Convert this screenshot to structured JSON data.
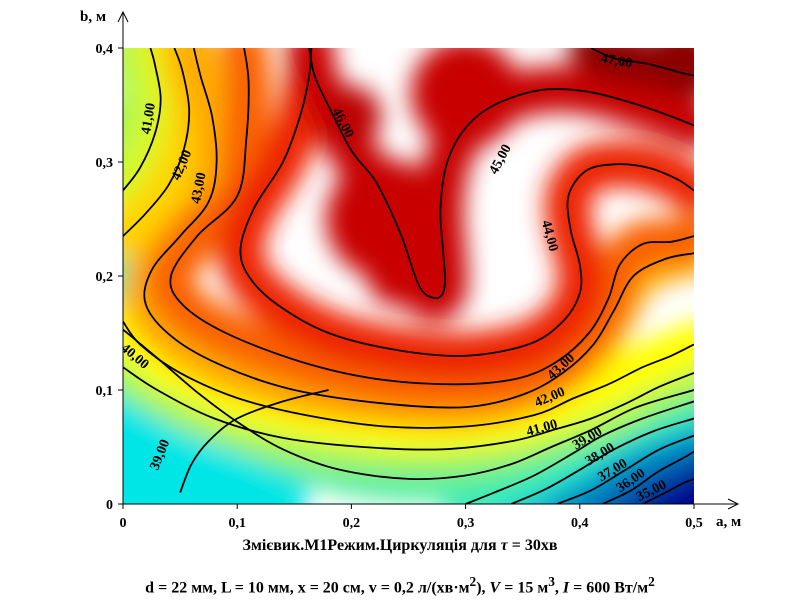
{
  "chart_data": {
    "type": "heatmap",
    "title": "Змієвик.М1Режим.Циркуляція для τ = 30хв",
    "subtitle": "d = 22 мм, L = 10 мм, x = 20 см, v = 0,2 л/(хв·м2), V = 15 м3, I = 600 Вт/м2",
    "xlabel": "a, м",
    "ylabel": "b, м",
    "xlim": [
      0,
      0.5
    ],
    "ylim": [
      0,
      0.4
    ],
    "x_ticks": [
      "0",
      "0,1",
      "0,2",
      "0,3",
      "0,4",
      "0,5"
    ],
    "y_ticks": [
      "0",
      "0,1",
      "0,2",
      "0,3",
      "0,4"
    ],
    "grid": false,
    "colormap": "jet",
    "contour_levels": [
      35,
      36,
      37,
      38,
      39,
      40,
      41,
      42,
      43,
      44,
      45,
      46,
      47
    ],
    "contour_labels": [
      {
        "text": "47,00",
        "x": 0.432,
        "y": 0.388
      },
      {
        "text": "46,00",
        "x": 0.192,
        "y": 0.334
      },
      {
        "text": "45,00",
        "x": 0.331,
        "y": 0.302
      },
      {
        "text": "44,00",
        "x": 0.373,
        "y": 0.235
      },
      {
        "text": "43,00",
        "x": 0.384,
        "y": 0.12
      },
      {
        "text": "42,00",
        "x": 0.374,
        "y": 0.093
      },
      {
        "text": "41,00",
        "x": 0.367,
        "y": 0.066
      },
      {
        "text": "41,00",
        "x": 0.023,
        "y": 0.338
      },
      {
        "text": "42,00",
        "x": 0.052,
        "y": 0.297
      },
      {
        "text": "43,00",
        "x": 0.067,
        "y": 0.277
      },
      {
        "text": "40,00",
        "x": 0.01,
        "y": 0.129
      },
      {
        "text": "39,00",
        "x": 0.033,
        "y": 0.043
      },
      {
        "text": "39,00",
        "x": 0.407,
        "y": 0.057
      },
      {
        "text": "38,00",
        "x": 0.418,
        "y": 0.043
      },
      {
        "text": "37,00",
        "x": 0.429,
        "y": 0.029
      },
      {
        "text": "36,00",
        "x": 0.445,
        "y": 0.02
      },
      {
        "text": "35,00",
        "x": 0.463,
        "y": 0.011
      }
    ],
    "contour_lines": [
      {
        "level": 47,
        "points": [
          [
            0.41,
            0.4
          ],
          [
            0.43,
            0.391
          ],
          [
            0.46,
            0.386
          ],
          [
            0.49,
            0.378
          ],
          [
            0.5,
            0.376
          ]
        ]
      },
      {
        "level": 46,
        "points": [
          [
            0.163,
            0.4
          ],
          [
            0.168,
            0.375
          ],
          [
            0.182,
            0.345
          ],
          [
            0.2,
            0.31
          ],
          [
            0.22,
            0.285
          ],
          [
            0.233,
            0.26
          ],
          [
            0.245,
            0.232
          ],
          [
            0.254,
            0.205
          ],
          [
            0.26,
            0.19
          ],
          [
            0.268,
            0.182
          ],
          [
            0.278,
            0.182
          ],
          [
            0.282,
            0.195
          ],
          [
            0.28,
            0.225
          ],
          [
            0.278,
            0.26
          ],
          [
            0.284,
            0.3
          ],
          [
            0.3,
            0.33
          ],
          [
            0.325,
            0.35
          ],
          [
            0.365,
            0.363
          ],
          [
            0.405,
            0.362
          ],
          [
            0.445,
            0.352
          ],
          [
            0.48,
            0.34
          ],
          [
            0.5,
            0.332
          ]
        ]
      },
      {
        "level": 45,
        "points": [
          [
            0.5,
            0.275
          ],
          [
            0.485,
            0.285
          ],
          [
            0.46,
            0.295
          ],
          [
            0.43,
            0.298
          ],
          [
            0.405,
            0.292
          ],
          [
            0.39,
            0.27
          ],
          [
            0.392,
            0.24
          ],
          [
            0.4,
            0.21
          ],
          [
            0.4,
            0.185
          ],
          [
            0.385,
            0.16
          ],
          [
            0.355,
            0.14
          ],
          [
            0.3,
            0.13
          ],
          [
            0.24,
            0.135
          ],
          [
            0.18,
            0.15
          ],
          [
            0.135,
            0.175
          ],
          [
            0.11,
            0.2
          ],
          [
            0.103,
            0.225
          ],
          [
            0.115,
            0.26
          ],
          [
            0.14,
            0.3
          ],
          [
            0.155,
            0.34
          ],
          [
            0.163,
            0.375
          ],
          [
            0.165,
            0.4
          ]
        ]
      },
      {
        "level": 44,
        "points": [
          [
            0.5,
            0.235
          ],
          [
            0.48,
            0.23
          ],
          [
            0.455,
            0.228
          ],
          [
            0.435,
            0.21
          ],
          [
            0.425,
            0.18
          ],
          [
            0.408,
            0.15
          ],
          [
            0.38,
            0.125
          ],
          [
            0.345,
            0.11
          ],
          [
            0.29,
            0.105
          ],
          [
            0.22,
            0.11
          ],
          [
            0.155,
            0.125
          ],
          [
            0.09,
            0.15
          ],
          [
            0.052,
            0.175
          ],
          [
            0.042,
            0.2
          ],
          [
            0.065,
            0.235
          ],
          [
            0.1,
            0.27
          ],
          [
            0.108,
            0.32
          ],
          [
            0.11,
            0.37
          ],
          [
            0.106,
            0.4
          ]
        ]
      },
      {
        "level": 43,
        "points": [
          [
            0.5,
            0.22
          ],
          [
            0.475,
            0.215
          ],
          [
            0.447,
            0.2
          ],
          [
            0.43,
            0.17
          ],
          [
            0.412,
            0.14
          ],
          [
            0.385,
            0.115
          ],
          [
            0.35,
            0.096
          ],
          [
            0.3,
            0.085
          ],
          [
            0.23,
            0.088
          ],
          [
            0.15,
            0.1
          ],
          [
            0.09,
            0.12
          ],
          [
            0.045,
            0.145
          ],
          [
            0.02,
            0.175
          ],
          [
            0.025,
            0.205
          ],
          [
            0.05,
            0.235
          ],
          [
            0.075,
            0.265
          ],
          [
            0.082,
            0.3
          ],
          [
            0.078,
            0.34
          ],
          [
            0.068,
            0.375
          ],
          [
            0.062,
            0.4
          ]
        ]
      },
      {
        "level": 42,
        "points": [
          [
            0.5,
            0.14
          ],
          [
            0.48,
            0.13
          ],
          [
            0.455,
            0.12
          ],
          [
            0.425,
            0.105
          ],
          [
            0.395,
            0.093
          ],
          [
            0.36,
            0.078
          ],
          [
            0.3,
            0.068
          ],
          [
            0.23,
            0.068
          ],
          [
            0.16,
            0.078
          ],
          [
            0.1,
            0.093
          ],
          [
            0.05,
            0.115
          ],
          [
            0.015,
            0.14
          ],
          [
            0,
            0.16
          ]
        ]
      },
      {
        "level": 42.5,
        "points": [
          [
            0,
            0.235
          ],
          [
            0.02,
            0.255
          ],
          [
            0.04,
            0.28
          ],
          [
            0.053,
            0.31
          ],
          [
            0.058,
            0.345
          ],
          [
            0.052,
            0.38
          ],
          [
            0.045,
            0.4
          ]
        ]
      },
      {
        "level": 41,
        "points": [
          [
            0.5,
            0.115
          ],
          [
            0.47,
            0.103
          ],
          [
            0.44,
            0.088
          ],
          [
            0.41,
            0.075
          ],
          [
            0.38,
            0.066
          ],
          [
            0.34,
            0.055
          ],
          [
            0.28,
            0.048
          ],
          [
            0.21,
            0.05
          ],
          [
            0.14,
            0.058
          ],
          [
            0.08,
            0.075
          ],
          [
            0.03,
            0.1
          ],
          [
            0,
            0.12
          ]
        ]
      },
      {
        "level": 41.5,
        "points": [
          [
            0,
            0.275
          ],
          [
            0.015,
            0.295
          ],
          [
            0.028,
            0.325
          ],
          [
            0.033,
            0.355
          ],
          [
            0.028,
            0.385
          ],
          [
            0.024,
            0.4
          ]
        ]
      },
      {
        "level": 40,
        "points": [
          [
            0,
            0.153
          ],
          [
            0.03,
            0.128
          ],
          [
            0.065,
            0.098
          ],
          [
            0.1,
            0.072
          ],
          [
            0.14,
            0.048
          ],
          [
            0.19,
            0.03
          ],
          [
            0.25,
            0.022
          ],
          [
            0.3,
            0.025
          ],
          [
            0.34,
            0.035
          ],
          [
            0.375,
            0.05
          ],
          [
            0.41,
            0.065
          ],
          [
            0.45,
            0.085
          ],
          [
            0.5,
            0.1
          ]
        ]
      },
      {
        "level": 39,
        "points": [
          [
            0.05,
            0.01
          ],
          [
            0.06,
            0.035
          ],
          [
            0.075,
            0.055
          ],
          [
            0.1,
            0.075
          ],
          [
            0.14,
            0.09
          ],
          [
            0.18,
            0.1
          ]
        ]
      },
      {
        "level": 39.5,
        "points": [
          [
            0.3,
            0
          ],
          [
            0.325,
            0.01
          ],
          [
            0.36,
            0.025
          ],
          [
            0.395,
            0.045
          ],
          [
            0.42,
            0.06
          ],
          [
            0.455,
            0.075
          ],
          [
            0.5,
            0.09
          ]
        ]
      },
      {
        "level": 38,
        "points": [
          [
            0.34,
            0
          ],
          [
            0.37,
            0.013
          ],
          [
            0.4,
            0.03
          ],
          [
            0.43,
            0.048
          ],
          [
            0.465,
            0.064
          ],
          [
            0.5,
            0.075
          ]
        ]
      },
      {
        "level": 37,
        "points": [
          [
            0.38,
            0
          ],
          [
            0.41,
            0.012
          ],
          [
            0.44,
            0.03
          ],
          [
            0.47,
            0.048
          ],
          [
            0.5,
            0.06
          ]
        ]
      },
      {
        "level": 36,
        "points": [
          [
            0.42,
            0
          ],
          [
            0.445,
            0.012
          ],
          [
            0.468,
            0.028
          ],
          [
            0.49,
            0.04
          ],
          [
            0.5,
            0.046
          ]
        ]
      },
      {
        "level": 35,
        "points": [
          [
            0.455,
            0
          ],
          [
            0.475,
            0.01
          ],
          [
            0.49,
            0.018
          ],
          [
            0.5,
            0.022
          ]
        ]
      }
    ]
  },
  "caption": {
    "title_prefix": "Змієвик.М1Режим.Циркуляція для ",
    "tau_symbol": "τ",
    "title_suffix": " = 30хв",
    "params_part1": "d = 22 мм, L = 10 мм, x = 20 см, v = 0,2 л/(хв·м",
    "sup2": "2",
    "params_part2": "), ",
    "V_symbol": "V",
    "params_part3": " = 15 м",
    "sup3": "3",
    "params_part4": ", ",
    "I_symbol": "I",
    "params_part5": " = 600 Вт/м",
    "sup2b": "2"
  },
  "colors": {
    "cold": "#00008c",
    "cyan": "#00e6e6",
    "green": "#7ff07f",
    "yellow": "#ffff00",
    "orange": "#ff8000",
    "red": "#e60000",
    "dark_red": "#8c0000",
    "line": "#000000"
  }
}
